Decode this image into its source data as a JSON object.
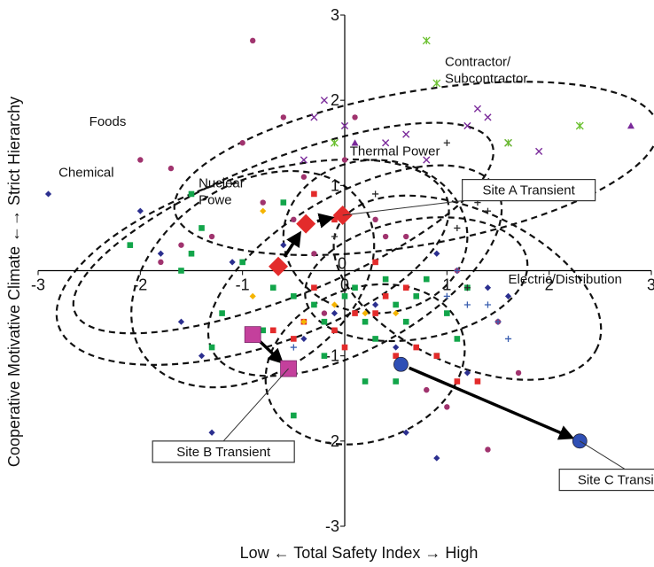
{
  "chart_data": {
    "type": "scatter",
    "xlabel": "Low ← Total Safety Index → High",
    "ylabel": "Cooperative Motivative Climate ←→ Strict Hierarchy",
    "xlim": [
      -3,
      3
    ],
    "ylim": [
      -3,
      3
    ],
    "xticks": [
      "-3",
      "-2",
      "-1",
      "0",
      "1",
      "2",
      "3"
    ],
    "yticks": [
      "3",
      "2",
      "1",
      "0",
      "-1",
      "-2",
      "-3"
    ],
    "grid": false,
    "series": [
      {
        "marker": "diamond",
        "color": "#2b2f8f",
        "points": [
          [
            -2.9,
            0.9
          ],
          [
            -2.0,
            0.7
          ],
          [
            -1.8,
            0.2
          ],
          [
            -1.6,
            -0.6
          ],
          [
            -1.1,
            0.1
          ],
          [
            -1.4,
            -1.0
          ],
          [
            -1.3,
            -1.9
          ],
          [
            -0.6,
            0.3
          ],
          [
            -0.4,
            -0.8
          ],
          [
            0.3,
            -0.4
          ],
          [
            0.5,
            -0.9
          ],
          [
            0.9,
            0.2
          ],
          [
            1.2,
            -1.2
          ],
          [
            1.4,
            -0.2
          ],
          [
            1.6,
            -0.3
          ],
          [
            0.6,
            -1.9
          ],
          [
            0.9,
            -2.2
          ],
          [
            -0.1,
            -0.5
          ]
        ]
      },
      {
        "marker": "square",
        "color": "#12a54a",
        "points": [
          [
            -2.1,
            0.3
          ],
          [
            -1.6,
            0.0
          ],
          [
            -1.5,
            0.2
          ],
          [
            -1.2,
            -0.5
          ],
          [
            -1.3,
            -0.9
          ],
          [
            -1.0,
            0.1
          ],
          [
            -0.8,
            -0.7
          ],
          [
            -0.5,
            -0.3
          ],
          [
            -0.3,
            -0.4
          ],
          [
            -0.2,
            -0.6
          ],
          [
            0.0,
            -0.3
          ],
          [
            0.1,
            -0.2
          ],
          [
            0.2,
            -0.6
          ],
          [
            0.3,
            -0.8
          ],
          [
            0.4,
            -0.1
          ],
          [
            0.5,
            -0.4
          ],
          [
            0.6,
            -0.6
          ],
          [
            0.7,
            -0.3
          ],
          [
            0.8,
            -0.1
          ],
          [
            1.0,
            -0.5
          ],
          [
            1.1,
            -0.8
          ],
          [
            1.2,
            -0.2
          ],
          [
            0.9,
            -1.0
          ],
          [
            0.2,
            -1.3
          ],
          [
            0.5,
            -1.3
          ],
          [
            -0.5,
            -1.7
          ],
          [
            -1.5,
            0.9
          ],
          [
            -1.4,
            0.5
          ],
          [
            -0.6,
            0.8
          ],
          [
            -0.2,
            -1.0
          ],
          [
            -0.7,
            -0.2
          ]
        ]
      },
      {
        "marker": "square",
        "color": "#e32b2b",
        "points": [
          [
            -0.7,
            -0.7
          ],
          [
            -0.5,
            -0.8
          ],
          [
            -0.4,
            -0.6
          ],
          [
            -0.3,
            -0.2
          ],
          [
            -0.1,
            -0.7
          ],
          [
            0.0,
            -0.9
          ],
          [
            0.1,
            -0.5
          ],
          [
            0.3,
            -0.5
          ],
          [
            0.4,
            -0.3
          ],
          [
            0.5,
            -1.0
          ],
          [
            0.6,
            -0.2
          ],
          [
            0.7,
            -0.9
          ],
          [
            0.9,
            -1.0
          ],
          [
            1.1,
            -1.3
          ],
          [
            1.3,
            -1.3
          ],
          [
            -0.3,
            0.9
          ],
          [
            -0.1,
            0.6
          ],
          [
            0.3,
            0.1
          ]
        ]
      },
      {
        "marker": "circle",
        "color": "#a0336e",
        "points": [
          [
            -2.0,
            1.3
          ],
          [
            -1.7,
            1.2
          ],
          [
            -1.6,
            0.3
          ],
          [
            -1.3,
            0.4
          ],
          [
            -1.0,
            1.5
          ],
          [
            -0.9,
            2.7
          ],
          [
            -0.6,
            1.8
          ],
          [
            -0.5,
            0.6
          ],
          [
            -0.4,
            1.1
          ],
          [
            -0.3,
            0.2
          ],
          [
            -0.2,
            -0.5
          ],
          [
            0.1,
            1.8
          ],
          [
            0.3,
            0.6
          ],
          [
            0.4,
            0.4
          ],
          [
            0.6,
            0.4
          ],
          [
            0.8,
            -1.4
          ],
          [
            1.0,
            -1.6
          ],
          [
            1.1,
            0.0
          ],
          [
            1.4,
            -2.1
          ],
          [
            1.5,
            -0.6
          ],
          [
            1.7,
            -1.2
          ],
          [
            -1.8,
            0.1
          ],
          [
            0.0,
            1.3
          ],
          [
            -0.8,
            0.8
          ]
        ]
      },
      {
        "marker": "diamond",
        "color": "#f5b400",
        "points": [
          [
            -0.9,
            -0.3
          ],
          [
            -0.4,
            -0.6
          ],
          [
            -0.1,
            -0.4
          ],
          [
            0.2,
            -0.5
          ],
          [
            0.5,
            -0.5
          ],
          [
            -0.8,
            0.7
          ]
        ]
      },
      {
        "marker": "x",
        "color": "#7a2a9a",
        "points": [
          [
            -0.3,
            1.8
          ],
          [
            -0.2,
            2.0
          ],
          [
            0.0,
            1.7
          ],
          [
            0.4,
            1.5
          ],
          [
            0.6,
            1.6
          ],
          [
            1.2,
            1.7
          ],
          [
            1.3,
            1.9
          ],
          [
            1.4,
            1.8
          ],
          [
            1.6,
            1.5
          ],
          [
            1.9,
            1.4
          ],
          [
            -0.4,
            1.3
          ],
          [
            0.8,
            1.3
          ]
        ]
      },
      {
        "marker": "star",
        "color": "#6ac02e",
        "points": [
          [
            -0.1,
            1.5
          ],
          [
            0.8,
            2.7
          ],
          [
            0.9,
            2.2
          ],
          [
            1.6,
            1.5
          ],
          [
            2.3,
            1.7
          ]
        ]
      },
      {
        "marker": "triangle",
        "color": "#7a2a9a",
        "points": [
          [
            0.1,
            1.5
          ],
          [
            2.8,
            1.7
          ]
        ]
      },
      {
        "marker": "plus",
        "color": "#2b2b2b",
        "points": [
          [
            1.0,
            1.5
          ],
          [
            1.3,
            0.8
          ],
          [
            1.4,
            0.7
          ],
          [
            1.1,
            0.5
          ],
          [
            1.2,
            -0.2
          ],
          [
            0.3,
            0.9
          ],
          [
            -0.1,
            0.4
          ]
        ]
      },
      {
        "marker": "plus",
        "color": "#3a5fb0",
        "points": [
          [
            1.0,
            -0.3
          ],
          [
            1.2,
            -0.4
          ],
          [
            1.4,
            -0.4
          ],
          [
            1.5,
            -0.6
          ],
          [
            1.6,
            -0.8
          ],
          [
            1.1,
            0.0
          ],
          [
            -0.5,
            -0.9
          ]
        ]
      }
    ],
    "ellipses": [
      {
        "label": "Contractor/\nSubcontractor",
        "cx": 0.7,
        "cy": 1.2,
        "rx": 2.4,
        "ry": 0.9,
        "angle": -10
      },
      {
        "label": "Foods",
        "cx": -0.6,
        "cy": 0.5,
        "rx": 2.2,
        "ry": 0.8,
        "angle": -22
      },
      {
        "label": "Chemical",
        "cx": -0.9,
        "cy": 0.1,
        "rx": 2.0,
        "ry": 1.0,
        "angle": -18
      },
      {
        "label": "Nuclear\nPowe",
        "cx": -0.9,
        "cy": -0.1,
        "rx": 1.3,
        "ry": 1.1,
        "angle": -35
      },
      {
        "label": "Thermal Power",
        "cx": 0.3,
        "cy": 0.4,
        "rx": 0.9,
        "ry": 0.9,
        "angle": 0
      },
      {
        "label": "",
        "cx": 0.1,
        "cy": 0.0,
        "rx": 1.6,
        "ry": 0.9,
        "angle": -30
      },
      {
        "label": "",
        "cx": 0.7,
        "cy": -0.1,
        "rx": 1.1,
        "ry": 0.7,
        "angle": -10
      },
      {
        "label": "Electric/Distribution",
        "cx": 1.2,
        "cy": -0.2,
        "rx": 1.4,
        "ry": 0.9,
        "angle": 25
      },
      {
        "label": "",
        "cx": 0.2,
        "cy": -1.1,
        "rx": 1.0,
        "ry": 0.9,
        "angle": -20
      }
    ],
    "transients": [
      {
        "label": "Site A Transient",
        "marker": "diamond",
        "color": "#e32b2b",
        "size": 11,
        "path": [
          [
            -0.65,
            0.05
          ],
          [
            -0.38,
            0.55
          ],
          [
            -0.02,
            0.65
          ]
        ],
        "box_at": [
          1.15,
          1.07
        ],
        "box_w": 150,
        "leader_to": [
          -0.02,
          0.65
        ]
      },
      {
        "label": "Site B Transient",
        "marker": "square",
        "color": "#c4409c",
        "size": 9,
        "path": [
          [
            -0.9,
            -0.75
          ],
          [
            -0.55,
            -1.15
          ]
        ],
        "box_at": [
          -1.88,
          -2.0
        ],
        "box_w": 160,
        "leader_to": [
          -0.55,
          -1.15
        ]
      },
      {
        "label": "Site C Transient",
        "marker": "circle",
        "color": "#2f4fb5",
        "size": 8,
        "path": [
          [
            0.55,
            -1.1
          ],
          [
            2.3,
            -2.0
          ]
        ],
        "box_at": [
          2.1,
          -2.33
        ],
        "box_w": 148,
        "leader_to": [
          2.3,
          -2.0
        ]
      }
    ]
  }
}
